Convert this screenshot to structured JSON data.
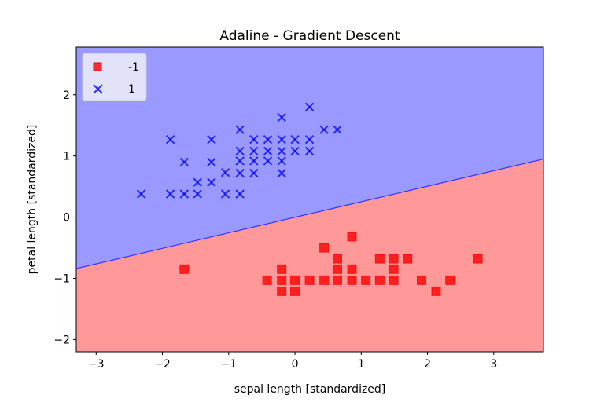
{
  "chart_data": {
    "type": "scatter",
    "title": "Adaline - Gradient Descent",
    "xlabel": "sepal length [standardized]",
    "ylabel": "petal length [standardized]",
    "xlim": [
      -3.3,
      3.75
    ],
    "ylim": [
      -2.2,
      2.78
    ],
    "xticks": [
      -3,
      -2,
      -1,
      0,
      1,
      2,
      3
    ],
    "yticks": [
      -2,
      -1,
      0,
      1,
      2
    ],
    "xtick_labels": [
      "−3",
      "−2",
      "−1",
      "0",
      "1",
      "2",
      "3"
    ],
    "ytick_labels": [
      "−2",
      "−1",
      "0",
      "1",
      "2"
    ],
    "grid": false,
    "legend_position": "upper left",
    "decision_boundary": {
      "points": [
        [
          -3.3,
          -0.84
        ],
        [
          3.75,
          0.95
        ]
      ],
      "region_above_color": "#9999ff",
      "region_below_color": "#ff9999",
      "line_color": "#3333ff"
    },
    "series": [
      {
        "name": "-1",
        "marker": "square",
        "color": "#ff0000",
        "points": [
          [
            -1.67,
            -0.85
          ],
          [
            0.44,
            -0.5
          ],
          [
            0.86,
            -0.32
          ],
          [
            -0.2,
            -0.85
          ],
          [
            -0.42,
            -1.03
          ],
          [
            -0.2,
            -1.03
          ],
          [
            0.0,
            -1.03
          ],
          [
            0.22,
            -1.03
          ],
          [
            0.44,
            -1.03
          ],
          [
            -0.2,
            -1.21
          ],
          [
            0.0,
            -1.21
          ],
          [
            0.64,
            -0.68
          ],
          [
            1.28,
            -0.68
          ],
          [
            1.49,
            -0.68
          ],
          [
            1.7,
            -0.68
          ],
          [
            2.76,
            -0.68
          ],
          [
            0.64,
            -0.85
          ],
          [
            0.86,
            -0.85
          ],
          [
            1.49,
            -0.85
          ],
          [
            0.64,
            -1.03
          ],
          [
            0.86,
            -1.03
          ],
          [
            1.07,
            -1.03
          ],
          [
            1.28,
            -1.03
          ],
          [
            1.49,
            -1.03
          ],
          [
            1.91,
            -1.03
          ],
          [
            2.34,
            -1.03
          ],
          [
            2.13,
            -1.21
          ]
        ]
      },
      {
        "name": "1",
        "marker": "x",
        "color": "#0000ff",
        "points": [
          [
            0.22,
            1.8
          ],
          [
            -0.2,
            1.63
          ],
          [
            -0.83,
            1.43
          ],
          [
            0.44,
            1.43
          ],
          [
            0.64,
            1.43
          ],
          [
            -0.62,
            1.27
          ],
          [
            -0.41,
            1.27
          ],
          [
            -0.2,
            1.27
          ],
          [
            0.0,
            1.27
          ],
          [
            0.22,
            1.27
          ],
          [
            -0.83,
            1.08
          ],
          [
            -0.62,
            1.08
          ],
          [
            -0.41,
            1.08
          ],
          [
            -0.2,
            1.08
          ],
          [
            0.0,
            1.08
          ],
          [
            0.22,
            1.08
          ],
          [
            -0.83,
            0.92
          ],
          [
            -0.62,
            0.92
          ],
          [
            -0.41,
            0.92
          ],
          [
            -0.2,
            0.92
          ],
          [
            -0.83,
            0.72
          ],
          [
            -0.62,
            0.72
          ],
          [
            -0.2,
            0.72
          ],
          [
            -1.88,
            1.27
          ],
          [
            -1.26,
            1.27
          ],
          [
            -1.67,
            0.9
          ],
          [
            -1.26,
            0.9
          ],
          [
            -1.05,
            0.73
          ],
          [
            -1.47,
            0.57
          ],
          [
            -1.26,
            0.57
          ],
          [
            -2.32,
            0.38
          ],
          [
            -1.88,
            0.38
          ],
          [
            -1.67,
            0.38
          ],
          [
            -1.47,
            0.38
          ],
          [
            -1.05,
            0.38
          ],
          [
            -0.83,
            0.38
          ]
        ]
      }
    ]
  }
}
